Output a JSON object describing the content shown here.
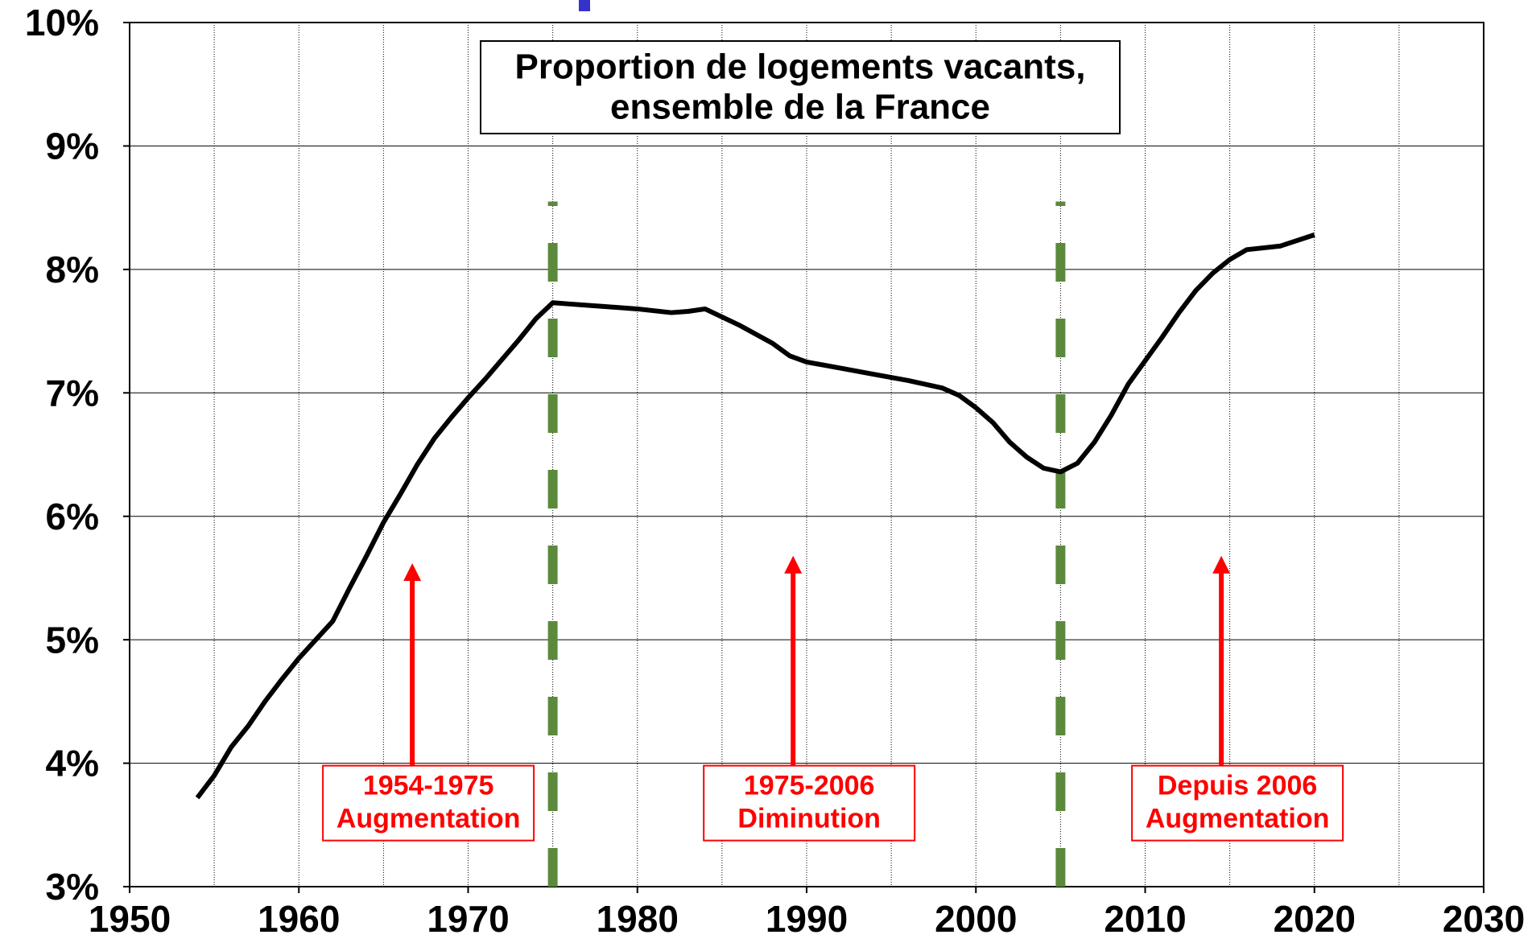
{
  "chart_data": {
    "type": "line",
    "title": [
      "Proportion de logements vacants,",
      "ensemble de la France"
    ],
    "x": [
      1954,
      1955,
      1956,
      1957,
      1958,
      1959,
      1960,
      1961,
      1962,
      1963,
      1964,
      1965,
      1966,
      1967,
      1968,
      1969,
      1970,
      1971,
      1972,
      1973,
      1974,
      1975,
      1976,
      1978,
      1980,
      1982,
      1983,
      1984,
      1986,
      1988,
      1989,
      1990,
      1992,
      1994,
      1996,
      1998,
      1999,
      2000,
      2001,
      2002,
      2003,
      2004,
      2005,
      2006,
      2007,
      2008,
      2009,
      2010,
      2011,
      2012,
      2013,
      2014,
      2015,
      2016,
      2018,
      2020
    ],
    "series": [
      {
        "name": "Proportion de logements vacants",
        "color": "#000000",
        "values": [
          3.72,
          3.9,
          4.13,
          4.3,
          4.5,
          4.68,
          4.85,
          5.0,
          5.15,
          5.42,
          5.68,
          5.95,
          6.18,
          6.42,
          6.63,
          6.8,
          6.96,
          7.11,
          7.27,
          7.43,
          7.6,
          7.73,
          7.72,
          7.7,
          7.68,
          7.65,
          7.66,
          7.68,
          7.55,
          7.4,
          7.3,
          7.25,
          7.2,
          7.15,
          7.1,
          7.04,
          6.98,
          6.88,
          6.76,
          6.6,
          6.48,
          6.39,
          6.36,
          6.43,
          6.6,
          6.82,
          7.07,
          7.26,
          7.45,
          7.65,
          7.83,
          7.97,
          8.08,
          8.16,
          8.19,
          8.28
        ]
      }
    ],
    "xlim": [
      1950,
      2030
    ],
    "xticks": [
      1950,
      1960,
      1970,
      1980,
      1990,
      2000,
      2010,
      2020,
      2030
    ],
    "x_gridlines": [
      1955,
      1960,
      1965,
      1970,
      1975,
      1980,
      1985,
      1990,
      1995,
      2000,
      2005,
      2010,
      2015,
      2020,
      2025
    ],
    "ylim": [
      3,
      10
    ],
    "yticks": [
      {
        "value": 3,
        "label": "3%"
      },
      {
        "value": 4,
        "label": "4%"
      },
      {
        "value": 5,
        "label": "5%"
      },
      {
        "value": 6,
        "label": "6%"
      },
      {
        "value": 7,
        "label": "7%"
      },
      {
        "value": 8,
        "label": "8%"
      },
      {
        "value": 9,
        "label": "9%"
      },
      {
        "value": 10,
        "label": "10%"
      }
    ],
    "grid": true,
    "vlines": [
      {
        "x": 1975,
        "y": [
          3,
          8.55
        ],
        "color": "#5b8a3c"
      },
      {
        "x": 2005,
        "y": [
          3,
          8.55
        ],
        "color": "#5b8a3c"
      }
    ],
    "annotations": [
      {
        "x": 1966.7,
        "y": [
          3.98,
          5.62
        ],
        "color": "#ff0000",
        "text": [
          "1954-1975",
          "Augmentation"
        ]
      },
      {
        "x": 1989.2,
        "y": [
          3.98,
          5.68
        ],
        "color": "#ff0000",
        "text": [
          "1975-2006",
          "Diminution"
        ]
      },
      {
        "x": 2014.5,
        "y": [
          3.98,
          5.68
        ],
        "color": "#ff0000",
        "text": [
          "Depuis 2006",
          "Augmentation"
        ]
      }
    ]
  }
}
